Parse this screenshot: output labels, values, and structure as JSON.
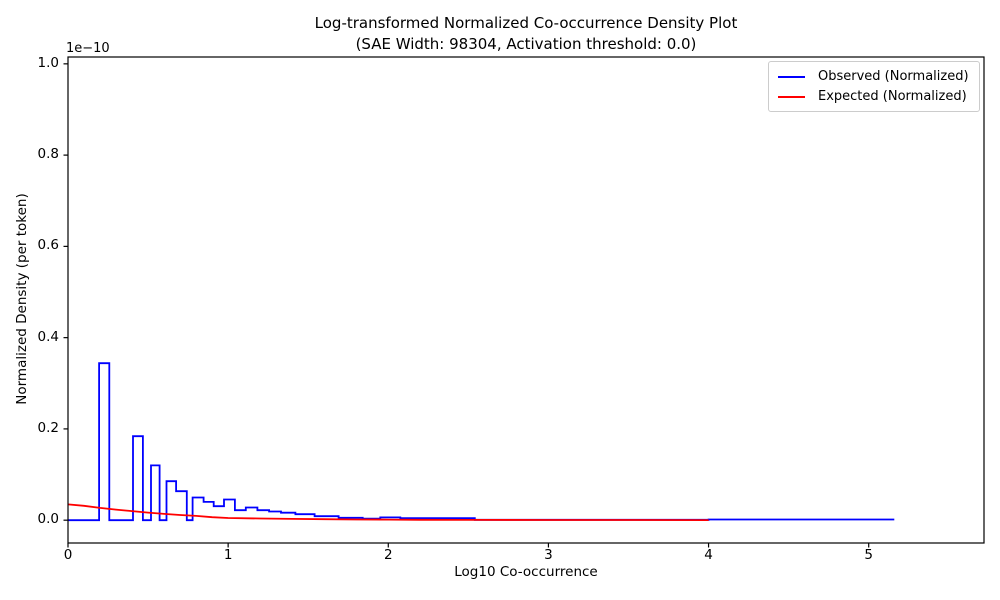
{
  "chart_data": {
    "type": "line",
    "title": "Log-transformed Normalized Co-occurrence Density Plot",
    "subtitle": "(SAE Width: 98304, Activation threshold: 0.0)",
    "xlabel": "Log10 Co-occurrence",
    "ylabel": "Normalized Density (per token)",
    "y_offset_label": "1e−10",
    "value_scale": "1e-10",
    "xlim": [
      0,
      5.72
    ],
    "ylim": [
      -0.05,
      1.015
    ],
    "x_ticks": [
      0,
      1,
      2,
      3,
      4,
      5
    ],
    "x_tick_labels": [
      "0",
      "1",
      "2",
      "3",
      "4",
      "5"
    ],
    "y_ticks": [
      0.0,
      0.2,
      0.4,
      0.6,
      0.8,
      1.0
    ],
    "y_tick_labels": [
      "0.0",
      "0.2",
      "0.4",
      "0.6",
      "0.8",
      "1.0"
    ],
    "grid": false,
    "legend_position": "upper right",
    "series": [
      {
        "name": "Observed (Normalized)",
        "color": "#0000ff",
        "style": "step",
        "x_end": 5.16,
        "steps": [
          [
            0.0,
            0.0
          ],
          [
            0.194,
            0.344
          ],
          [
            0.258,
            0.0
          ],
          [
            0.406,
            0.184
          ],
          [
            0.468,
            0.0
          ],
          [
            0.518,
            0.12
          ],
          [
            0.572,
            0.0
          ],
          [
            0.615,
            0.0855
          ],
          [
            0.675,
            0.0635
          ],
          [
            0.742,
            0.0
          ],
          [
            0.778,
            0.0498
          ],
          [
            0.847,
            0.04
          ],
          [
            0.91,
            0.0307
          ],
          [
            0.974,
            0.0454
          ],
          [
            1.042,
            0.0219
          ],
          [
            1.11,
            0.0278
          ],
          [
            1.183,
            0.0219
          ],
          [
            1.256,
            0.019
          ],
          [
            1.33,
            0.0165
          ],
          [
            1.42,
            0.0132
          ],
          [
            1.54,
            0.0088
          ],
          [
            1.69,
            0.0053
          ],
          [
            1.84,
            0.0035
          ],
          [
            1.95,
            0.0062
          ],
          [
            2.075,
            0.0044
          ],
          [
            2.54,
            0.0008
          ],
          [
            4.0,
            0.0015
          ]
        ]
      },
      {
        "name": "Expected (Normalized)",
        "color": "#ff0000",
        "style": "line",
        "points": [
          [
            0.0,
            0.0345
          ],
          [
            0.1,
            0.0315
          ],
          [
            0.2,
            0.027
          ],
          [
            0.3,
            0.0232
          ],
          [
            0.4,
            0.0198
          ],
          [
            0.5,
            0.0166
          ],
          [
            0.6,
            0.0138
          ],
          [
            0.7,
            0.0114
          ],
          [
            0.8,
            0.0094
          ],
          [
            0.9,
            0.0066
          ],
          [
            1.0,
            0.0048
          ],
          [
            1.2,
            0.0036
          ],
          [
            1.4,
            0.0028
          ],
          [
            1.6,
            0.0022
          ],
          [
            1.8,
            0.0016
          ],
          [
            2.0,
            0.0012
          ],
          [
            2.2,
            0.0009
          ],
          [
            2.5,
            0.0006
          ],
          [
            3.0,
            0.0004
          ],
          [
            3.5,
            0.0003
          ],
          [
            4.0,
            0.0002
          ]
        ]
      }
    ]
  }
}
